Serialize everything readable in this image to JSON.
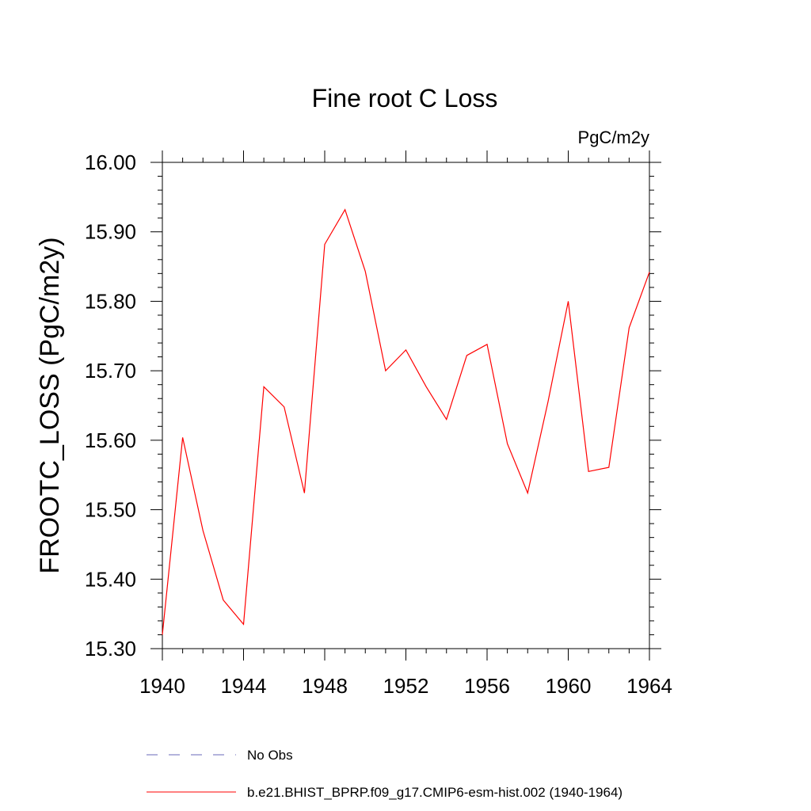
{
  "chart_data": {
    "type": "line",
    "title": "Fine root C Loss",
    "units_label": "PgC/m2y",
    "ylabel": "FROOTC_LOSS  (PgC/m2y)",
    "xlabel": "",
    "xlim": [
      1940,
      1964
    ],
    "ylim": [
      15.3,
      16.0
    ],
    "x_ticks": [
      1940,
      1944,
      1948,
      1952,
      1956,
      1960,
      1964
    ],
    "x_tick_labels": [
      "1940",
      "1944",
      "1948",
      "1952",
      "1956",
      "1960",
      "1964"
    ],
    "y_ticks": [
      15.3,
      15.4,
      15.5,
      15.6,
      15.7,
      15.8,
      15.9,
      16.0
    ],
    "y_tick_labels": [
      "15.30",
      "15.40",
      "15.50",
      "15.60",
      "15.70",
      "15.80",
      "15.90",
      "16.00"
    ],
    "grid": false,
    "legend_position": "bottom",
    "series": [
      {
        "name": "No Obs",
        "color": "#6a6ab8",
        "dash": true,
        "x": [],
        "values": []
      },
      {
        "name": "b.e21.BHIST_BPRP.f09_g17.CMIP6-esm-hist.002 (1940-1964)",
        "color": "#ff0000",
        "dash": false,
        "x": [
          1940,
          1941,
          1942,
          1943,
          1944,
          1945,
          1946,
          1947,
          1948,
          1949,
          1950,
          1951,
          1952,
          1953,
          1954,
          1955,
          1956,
          1957,
          1958,
          1959,
          1960,
          1961,
          1962,
          1963,
          1964
        ],
        "values": [
          15.32,
          15.604,
          15.47,
          15.37,
          15.335,
          15.677,
          15.648,
          15.524,
          15.882,
          15.932,
          15.843,
          15.7,
          15.73,
          15.677,
          15.63,
          15.722,
          15.738,
          15.595,
          15.524,
          15.655,
          15.8,
          15.555,
          15.561,
          15.762,
          15.842
        ]
      }
    ]
  }
}
